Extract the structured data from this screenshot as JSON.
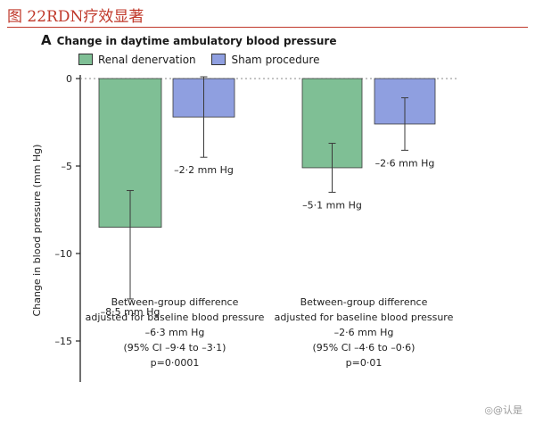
{
  "figure_caption": "图 22RDN疗效显著",
  "panel_letter": "A",
  "panel_title": "Change in daytime ambulatory blood pressure",
  "watermark": "◎@认是",
  "colors": {
    "caption": "#c0392b",
    "renal_denervation": "#7fbf95",
    "sham_procedure": "#8f9fe0",
    "axis": "#222222",
    "zero_line": "#888888"
  },
  "chart_data": {
    "type": "bar",
    "title": "Change in daytime ambulatory blood pressure",
    "ylabel": "Change in blood pressure (mm Hg)",
    "xlabel": "",
    "ylim": [
      -17,
      0.5
    ],
    "yticks": [
      0,
      -5,
      -10,
      -15
    ],
    "ytick_labels": [
      "0",
      "–5",
      "–10",
      "–15"
    ],
    "grid": false,
    "zero_line": "dashed",
    "legend_position": "top",
    "series": [
      {
        "name": "Renal denervation",
        "color": "#7fbf95",
        "values": [
          -8.5,
          -5.1
        ],
        "error_low": [
          -12.6,
          -6.5
        ],
        "error_high": [
          -6.4,
          -3.7
        ],
        "labels": [
          "–8·5 mm Hg",
          "–5·1 mm Hg"
        ]
      },
      {
        "name": "Sham procedure",
        "color": "#8f9fe0",
        "values": [
          -2.2,
          -2.6
        ],
        "error_low": [
          -4.5,
          -4.1
        ],
        "error_high": [
          0.1,
          -1.1
        ],
        "labels": [
          "–2·2 mm Hg",
          "–2·6 mm Hg"
        ]
      }
    ],
    "annotations": [
      {
        "lines": [
          "Between-group difference",
          "adjusted for baseline blood pressure",
          "–6·3 mm Hg",
          "(95% CI –9·4 to –3·1)",
          "p=0·0001"
        ]
      },
      {
        "lines": [
          "Between-group difference",
          "adjusted for baseline blood pressure",
          "–2·6 mm Hg",
          "(95% CI –4·6 to –0·6)",
          "p=0·01"
        ]
      }
    ]
  }
}
